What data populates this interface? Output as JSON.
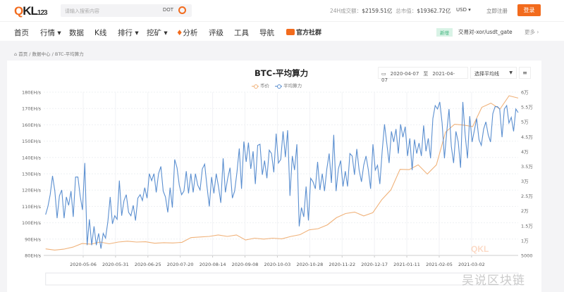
{
  "header": {
    "logo": "QKL123",
    "search_placeholder": "请输入搜索内容",
    "search_tag": "DOT",
    "volume_label": "24H成交额：",
    "volume_value": "$2159.51亿",
    "mcap_label": "总市值：",
    "mcap_value": "$19362.72亿",
    "currency": "USD",
    "register": "立即注册",
    "login": "登录"
  },
  "nav": {
    "items": [
      "首页",
      "行情",
      "数据",
      "K线",
      "排行",
      "挖矿",
      "分析",
      "评级",
      "工具",
      "导航"
    ],
    "official": "官方社群",
    "new_tag": "新增",
    "new_text": "交易对-xor/usdt_gate",
    "more": "更多"
  },
  "breadcrumb": {
    "home": "首页",
    "data_center": "数据中心",
    "current": "BTC-平均算力"
  },
  "chart_controls": {
    "date_from": "2020-04-07",
    "to": "至",
    "date_to": "2021-04-07",
    "avg_select": "选择平均线",
    "menu": "≡"
  },
  "watermark": "吴说区块链",
  "colors": {
    "price": "#f0b27a",
    "hashrate": "#5b8fd0",
    "accent": "#f26b1d"
  },
  "chart_data": {
    "type": "line",
    "title": "BTC-平均算力",
    "x_range": [
      "2020-04-07",
      "2021-04-07"
    ],
    "x_ticks": [
      "2020-05-06",
      "2020-05-31",
      "2020-06-25",
      "2020-07-20",
      "2020-08-14",
      "2020-09-08",
      "2020-10-03",
      "2020-10-28",
      "2020-11-22",
      "2020-12-17",
      "2021-01-11",
      "2021-02-05",
      "2021-03-02"
    ],
    "y_left": {
      "min": 80,
      "max": 180,
      "ticks": [
        "80EH/s",
        "90EH/s",
        "100EH/s",
        "110EH/s",
        "120EH/s",
        "130EH/s",
        "140EH/s",
        "150EH/s",
        "160EH/s",
        "170EH/s",
        "180EH/s"
      ]
    },
    "y_right": {
      "min": 5000,
      "max": 60000,
      "ticks": [
        "5000",
        "1万",
        "1.5万",
        "2万",
        "2.5万",
        "3万",
        "3.5万",
        "4万",
        "4.5万",
        "5万",
        "5.5万",
        "6万"
      ]
    },
    "grid": true,
    "legend_position": "top-center",
    "series": [
      {
        "name": "币价",
        "axis": "right",
        "values": [
          7200,
          6800,
          7100,
          7800,
          9000,
          8800,
          9500,
          8900,
          9500,
          9800,
          9500,
          9600,
          9100,
          9300,
          9200,
          9400,
          11000,
          11200,
          11400,
          11900,
          11400,
          11900,
          10200,
          10800,
          10500,
          10800,
          10600,
          11400,
          12000,
          13600,
          14000,
          15300,
          17700,
          19100,
          19600,
          18300,
          19400,
          23800,
          27100,
          34000,
          33900,
          35500,
          32400,
          35500,
          46500,
          49200,
          48900,
          48400,
          54900,
          56300,
          54300,
          58800,
          58000
        ]
      },
      {
        "name": "平均算力",
        "axis": "left",
        "values": [
          105.0,
          110.0,
          117.2,
          128.7,
          119.4,
          102.8,
          116.5,
          120.1,
          102.8,
          115.8,
          110.7,
          119.4,
          103.6,
          128.0,
          128.0,
          116.5,
          107.9,
          136.6,
          86.3,
          102.1,
          86.3,
          97.8,
          86.3,
          93.5,
          84.2,
          93.5,
          90.6,
          100.7,
          115.8,
          99.3,
          104.3,
          102.1,
          125.8,
          104.3,
          113.6,
          117.2,
          106.4,
          104.3,
          110.7,
          101.4,
          115.1,
          117.2,
          113.6,
          121.5,
          115.1,
          130.1,
          125.8,
          130.1,
          118.6,
          130.1,
          134.5,
          119.4,
          115.8,
          106.4,
          121.5,
          109.3,
          138.8,
          133.7,
          123.0,
          117.2,
          119.4,
          131.6,
          118.0,
          130.1,
          118.6,
          130.1,
          123.0,
          120.1,
          133.0,
          135.9,
          122.2,
          110.0,
          128.0,
          118.0,
          130.1,
          122.2,
          112.2,
          139.5,
          118.6,
          127.3,
          133.7,
          115.1,
          119.4,
          130.9,
          145.5,
          120.8,
          149.8,
          137.3,
          149.1,
          133.0,
          143.8,
          123.7,
          147.4,
          148.1,
          129.4,
          138.1,
          127.3,
          144.5,
          142.4,
          130.9,
          154.6,
          136.6,
          138.8,
          156.0,
          140.2,
          156.7,
          116.5,
          140.9,
          132.3,
          148.1,
          97.8,
          109.3,
          103.6,
          122.2,
          101.4,
          127.3,
          125.1,
          120.8,
          137.3,
          120.1,
          130.1,
          119.4,
          133.0,
          142.4,
          124.4,
          153.9,
          119.4,
          133.0,
          138.1,
          122.2,
          131.6,
          122.2,
          142.4,
          140.9,
          129.4,
          145.2,
          132.3,
          125.1,
          135.2,
          140.9,
          132.3,
          120.8,
          148.1,
          132.3,
          135.2,
          123.7,
          143.8,
          160.3,
          148.8,
          136.6,
          156.0,
          149.5,
          157.4,
          142.4,
          160.3,
          152.4,
          158.9,
          140.9,
          151.7,
          132.3,
          151.0,
          142.4,
          148.8,
          140.9,
          159.6,
          143.8,
          151.7,
          139.5,
          163.9,
          171.8,
          169.7,
          174.0,
          161.1,
          139.5,
          155.3,
          169.7,
          146.7,
          136.6,
          156.0,
          149.5,
          133.7,
          174.0,
          153.9,
          139.5,
          165.3,
          149.5,
          156.7,
          163.9,
          151.0,
          147.4,
          157.4,
          161.8,
          153.9,
          149.5,
          166.8,
          171.1,
          171.1,
          169.7,
          152.4,
          169.7,
          171.8,
          161.1,
          164.6,
          156.0,
          169.7,
          167.5
        ]
      }
    ]
  }
}
